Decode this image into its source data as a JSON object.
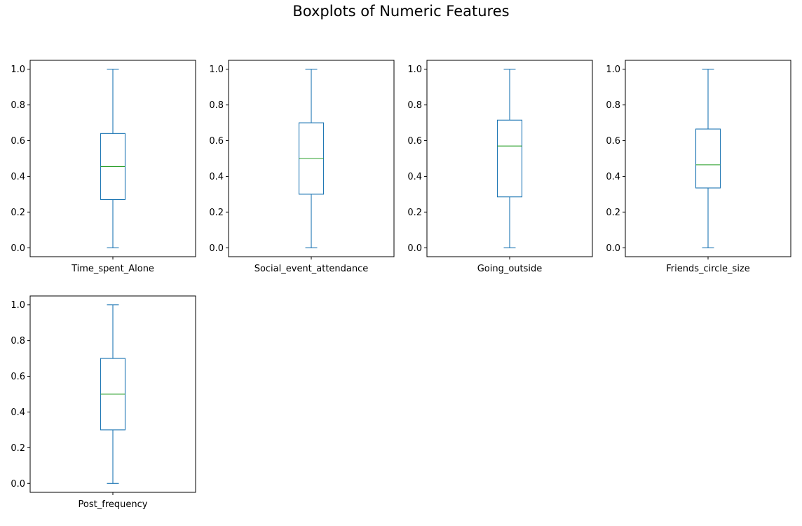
{
  "title": "Boxplots of Numeric Features",
  "chart_data": [
    {
      "type": "boxplot",
      "category": "Time_spent_Alone",
      "stats": {
        "min": 0.0,
        "q1": 0.27,
        "median": 0.455,
        "q3": 0.64,
        "max": 1.0
      },
      "ylim": [
        -0.05,
        1.05
      ],
      "yticks": [
        "0.0",
        "0.2",
        "0.4",
        "0.6",
        "0.8",
        "1.0"
      ]
    },
    {
      "type": "boxplot",
      "category": "Social_event_attendance",
      "stats": {
        "min": 0.0,
        "q1": 0.3,
        "median": 0.5,
        "q3": 0.7,
        "max": 1.0
      },
      "ylim": [
        -0.05,
        1.05
      ],
      "yticks": [
        "0.0",
        "0.2",
        "0.4",
        "0.6",
        "0.8",
        "1.0"
      ]
    },
    {
      "type": "boxplot",
      "category": "Going_outside",
      "stats": {
        "min": 0.0,
        "q1": 0.285,
        "median": 0.57,
        "q3": 0.715,
        "max": 1.0
      },
      "ylim": [
        -0.05,
        1.05
      ],
      "yticks": [
        "0.0",
        "0.2",
        "0.4",
        "0.6",
        "0.8",
        "1.0"
      ]
    },
    {
      "type": "boxplot",
      "category": "Friends_circle_size",
      "stats": {
        "min": 0.0,
        "q1": 0.335,
        "median": 0.465,
        "q3": 0.665,
        "max": 1.0
      },
      "ylim": [
        -0.05,
        1.05
      ],
      "yticks": [
        "0.0",
        "0.2",
        "0.4",
        "0.6",
        "0.8",
        "1.0"
      ]
    },
    {
      "type": "boxplot",
      "category": "Post_frequency",
      "stats": {
        "min": 0.0,
        "q1": 0.3,
        "median": 0.5,
        "q3": 0.7,
        "max": 1.0
      },
      "ylim": [
        -0.05,
        1.05
      ],
      "yticks": [
        "0.0",
        "0.2",
        "0.4",
        "0.6",
        "0.8",
        "1.0"
      ]
    }
  ],
  "colors": {
    "box": "#1f77b4",
    "median": "#2ca02c",
    "axes": "#000000"
  }
}
